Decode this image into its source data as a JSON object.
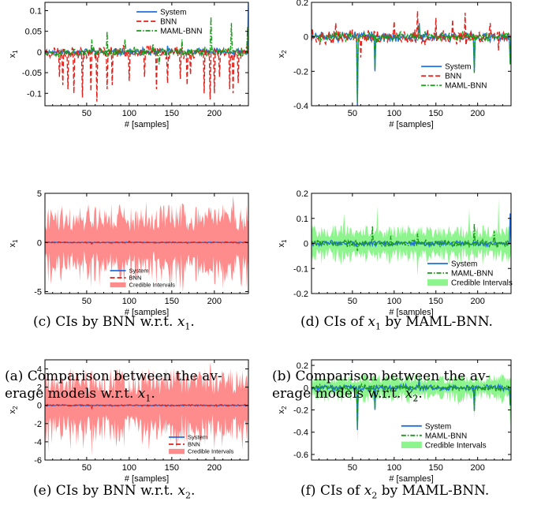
{
  "colors": {
    "system": "#1f6fe0",
    "bnn": "#e0201a",
    "maml": "#199a19",
    "bnn_ci": "#ff8c8c",
    "maml_ci": "#8ef58e"
  },
  "captions": [
    {
      "pre": "(a) Comparison between the av-",
      "line2": "erage models w.r.t. ",
      "var": "x",
      "sub": "1",
      "post": "."
    },
    {
      "pre": "(b) Comparison between the av-",
      "line2": "erage models w.r.t. ",
      "var": "x",
      "sub": "2",
      "post": "."
    },
    {
      "pre": "(c) CIs by BNN w.r.t. ",
      "var": "x",
      "sub": "1",
      "post": "."
    },
    {
      "pre": "(d) CIs of ",
      "var": "x",
      "sub": "1",
      "post": " by MAML-BNN."
    },
    {
      "pre": "(e) CIs by BNN w.r.t. ",
      "var": "x",
      "sub": "2",
      "post": "."
    },
    {
      "pre": "(f) CIs of ",
      "var": "x",
      "sub": "2",
      "post": " by MAML-BNN."
    }
  ],
  "chart_data": [
    {
      "id": "a",
      "type": "line",
      "xlabel": "# [samples]",
      "ylabel": "x",
      "ylabel_sub": "1",
      "xlim": [
        1,
        240
      ],
      "ylim": [
        -0.13,
        0.12
      ],
      "xticks": [
        50,
        100,
        150,
        200
      ],
      "yticks": [
        -0.1,
        -0.05,
        0,
        0.05,
        0.1
      ],
      "ytick_labels": [
        "-0.1",
        "-0.05",
        "0",
        "0.05",
        "0.1"
      ],
      "legend": {
        "placement": "top-center",
        "entries": [
          "System",
          "BNN",
          "MAML-BNN"
        ]
      },
      "series": [
        {
          "name": "System",
          "style": "solid",
          "amp": 0.007,
          "seed": 11,
          "spikes": [
            [
              240,
              0.12
            ],
            [
              238,
              -0.005
            ],
            [
              145,
              0.015
            ]
          ]
        },
        {
          "name": "BNN",
          "style": "dashed",
          "amp": 0.012,
          "seed": 23,
          "spikes": [
            [
              18,
              -0.06
            ],
            [
              22,
              -0.08
            ],
            [
              28,
              -0.09
            ],
            [
              35,
              -0.1
            ],
            [
              45,
              -0.11
            ],
            [
              55,
              -0.095
            ],
            [
              62,
              -0.12
            ],
            [
              74,
              -0.09
            ],
            [
              80,
              -0.08
            ],
            [
              100,
              -0.07
            ],
            [
              118,
              -0.06
            ],
            [
              132,
              -0.09
            ],
            [
              145,
              -0.075
            ],
            [
              160,
              -0.065
            ],
            [
              168,
              -0.08
            ],
            [
              172,
              -0.055
            ],
            [
              188,
              -0.1
            ],
            [
              195,
              -0.115
            ],
            [
              200,
              -0.1
            ],
            [
              206,
              -0.06
            ],
            [
              218,
              -0.09
            ],
            [
              222,
              -0.1
            ],
            [
              228,
              -0.075
            ]
          ]
        },
        {
          "name": "MAML-BNN",
          "style": "dashdot",
          "amp": 0.009,
          "seed": 37,
          "spikes": [
            [
              56,
              0.03
            ],
            [
              74,
              0.05
            ],
            [
              95,
              0.03
            ],
            [
              128,
              0.02
            ],
            [
              135,
              -0.03
            ],
            [
              162,
              0.03
            ],
            [
              196,
              0.085
            ],
            [
              220,
              0.07
            ],
            [
              239,
              0.06
            ]
          ]
        }
      ]
    },
    {
      "id": "b",
      "type": "line",
      "xlabel": "# [samples]",
      "ylabel": "x",
      "ylabel_sub": "2",
      "xlim": [
        1,
        240
      ],
      "ylim": [
        -0.4,
        0.2
      ],
      "xticks": [
        50,
        100,
        150,
        200
      ],
      "yticks": [
        -0.4,
        -0.2,
        0,
        0.2
      ],
      "ytick_labels": [
        "-0.4",
        "-0.2",
        "0",
        "0.2"
      ],
      "legend": {
        "placement": "bottom-center",
        "entries": [
          "System",
          "BNN",
          "MAML-BNN"
        ]
      },
      "series": [
        {
          "name": "System",
          "style": "solid",
          "amp": 0.022,
          "seed": 51,
          "spikes": [
            [
              56,
              -0.4
            ],
            [
              77,
              -0.2
            ],
            [
              130,
              0.08
            ],
            [
              196,
              -0.2
            ],
            [
              239,
              -0.15
            ]
          ]
        },
        {
          "name": "BNN",
          "style": "dashed",
          "amp": 0.035,
          "seed": 63,
          "spikes": [
            [
              30,
              0.08
            ],
            [
              60,
              -0.12
            ],
            [
              100,
              0.09
            ],
            [
              128,
              0.15
            ],
            [
              150,
              0.11
            ],
            [
              170,
              0.1
            ],
            [
              185,
              0.14
            ],
            [
              215,
              0.08
            ],
            [
              225,
              -0.08
            ]
          ]
        },
        {
          "name": "MAML-BNN",
          "style": "dashdot",
          "amp": 0.022,
          "seed": 77,
          "spikes": [
            [
              56,
              -0.38
            ],
            [
              77,
              -0.19
            ],
            [
              130,
              0.07
            ],
            [
              196,
              -0.21
            ],
            [
              239,
              -0.16
            ]
          ]
        }
      ]
    },
    {
      "id": "c",
      "type": "area",
      "xlabel": "# [samples]",
      "ylabel": "x",
      "ylabel_sub": "1",
      "xlim": [
        1,
        240
      ],
      "ylim": [
        -5.2,
        5
      ],
      "xticks": [
        50,
        100,
        150,
        200
      ],
      "yticks": [
        -5,
        0,
        5
      ],
      "ytick_labels": [
        "-5",
        "0",
        "5"
      ],
      "legend": {
        "placement": "bottom-center",
        "entries": [
          "System",
          "BNN",
          "Credible Intervals"
        ]
      },
      "band": {
        "amp": 3.2,
        "seed": 91,
        "peaks": [
          [
            55,
            -4.6
          ],
          [
            120,
            4.2
          ],
          [
            148,
            -4.8
          ],
          [
            222,
            4.8
          ],
          [
            232,
            -4.5
          ]
        ]
      },
      "series": [
        {
          "name": "System",
          "style": "solid",
          "amp": 0.03,
          "seed": 93,
          "spikes": []
        },
        {
          "name": "BNN",
          "style": "dashed",
          "amp": 0.05,
          "seed": 95,
          "spikes": [
            [
              56,
              -0.15
            ],
            [
              100,
              0.12
            ]
          ]
        }
      ]
    },
    {
      "id": "d",
      "type": "area",
      "xlabel": "# [samples]",
      "ylabel": "x",
      "ylabel_sub": "1",
      "xlim": [
        1,
        240
      ],
      "ylim": [
        -0.2,
        0.2
      ],
      "xticks": [
        50,
        100,
        150,
        200
      ],
      "yticks": [
        -0.2,
        -0.1,
        0,
        0.1,
        0.2
      ],
      "ytick_labels": [
        "-0.2",
        "-0.1",
        "0",
        "0.1",
        "0.2"
      ],
      "legend": {
        "placement": "bottom-right",
        "entries": [
          "System",
          "MAML-BNN",
          "Credible Intervals"
        ]
      },
      "band": {
        "amp": 0.06,
        "seed": 101,
        "peaks": [
          [
            40,
            0.12
          ],
          [
            80,
            0.15
          ],
          [
            128,
            -0.13
          ],
          [
            190,
            0.14
          ],
          [
            225,
            0.18
          ]
        ]
      },
      "series": [
        {
          "name": "System",
          "style": "solid",
          "amp": 0.008,
          "seed": 103,
          "spikes": [
            [
              239,
              0.12
            ]
          ]
        },
        {
          "name": "MAML-BNN",
          "style": "dashdot",
          "amp": 0.012,
          "seed": 105,
          "spikes": [
            [
              56,
              -0.03
            ],
            [
              74,
              0.07
            ],
            [
              96,
              0.03
            ],
            [
              128,
              0.04
            ],
            [
              196,
              0.08
            ],
            [
              220,
              0.05
            ]
          ]
        }
      ]
    },
    {
      "id": "e",
      "type": "area",
      "xlabel": "# [samples]",
      "ylabel": "x",
      "ylabel_sub": "2",
      "xlim": [
        1,
        240
      ],
      "ylim": [
        -6,
        5
      ],
      "xticks": [
        50,
        100,
        150,
        200
      ],
      "yticks": [
        -6,
        -4,
        -2,
        0,
        2,
        4
      ],
      "ytick_labels": [
        "-6",
        "-4",
        "-2",
        "0",
        "2",
        "4"
      ],
      "legend": {
        "placement": "bottom-right",
        "entries": [
          "System",
          "BNN",
          "Credible Intervals"
        ]
      },
      "band": {
        "amp": 3.3,
        "seed": 111,
        "peaks": [
          [
            56,
            -5.6
          ],
          [
            105,
            4.2
          ],
          [
            195,
            4.7
          ],
          [
            200,
            -4.8
          ],
          [
            30,
            3.5
          ]
        ]
      },
      "series": [
        {
          "name": "System",
          "style": "solid",
          "amp": 0.05,
          "seed": 113,
          "spikes": []
        },
        {
          "name": "BNN",
          "style": "dashed",
          "amp": 0.07,
          "seed": 115,
          "spikes": [
            [
              56,
              -0.3
            ]
          ]
        }
      ]
    },
    {
      "id": "f",
      "type": "area",
      "xlabel": "# [samples]",
      "ylabel": "x",
      "ylabel_sub": "2",
      "xlim": [
        1,
        240
      ],
      "ylim": [
        -0.65,
        0.25
      ],
      "xticks": [
        50,
        100,
        150,
        200
      ],
      "yticks": [
        -0.6,
        -0.4,
        -0.2,
        0,
        0.2
      ],
      "ytick_labels": [
        "-0.6",
        "-0.4",
        "-0.2",
        "0",
        "0.2"
      ],
      "legend": {
        "placement": "bottom-center",
        "entries": [
          "System",
          "MAML-BNN",
          "Credible Intervals"
        ]
      },
      "band": {
        "amp": 0.1,
        "seed": 121,
        "peaks": [
          [
            56,
            -0.5
          ],
          [
            130,
            0.15
          ],
          [
            196,
            -0.28
          ],
          [
            239,
            -0.35
          ]
        ]
      },
      "series": [
        {
          "name": "System",
          "style": "solid",
          "amp": 0.02,
          "seed": 123,
          "spikes": [
            [
              56,
              -0.38
            ],
            [
              77,
              -0.2
            ],
            [
              130,
              0.08
            ],
            [
              196,
              -0.2
            ],
            [
              239,
              -0.15
            ]
          ]
        },
        {
          "name": "MAML-BNN",
          "style": "dashdot",
          "amp": 0.022,
          "seed": 125,
          "spikes": [
            [
              56,
              -0.36
            ],
            [
              77,
              -0.19
            ],
            [
              130,
              0.07
            ],
            [
              196,
              -0.21
            ],
            [
              239,
              -0.16
            ]
          ]
        }
      ]
    }
  ]
}
